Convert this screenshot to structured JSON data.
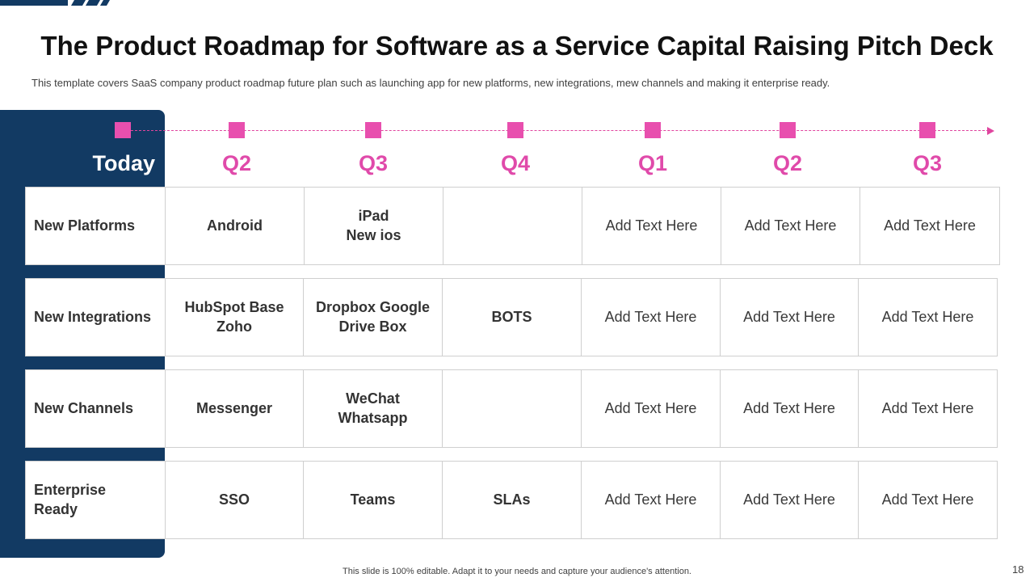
{
  "title": "The Product Roadmap for Software as a Service Capital Raising Pitch Deck",
  "subtitle": "This template covers SaaS company product roadmap future plan such as launching app for new platforms, new integrations, mew channels and making it enterprise ready.",
  "periods": [
    "Today",
    "Q2",
    "Q3",
    "Q4",
    "Q1",
    "Q2",
    "Q3"
  ],
  "rows": [
    {
      "label": "New Platforms",
      "cells": [
        "Android",
        "iPad\nNew ios",
        "",
        "Add Text Here",
        "Add Text Here",
        "Add Text Here"
      ]
    },
    {
      "label": "New Integrations",
      "cells": [
        "HubSpot Base\nZoho",
        "Dropbox Google\nDrive Box",
        "BOTS",
        "Add Text Here",
        "Add Text Here",
        "Add Text Here"
      ]
    },
    {
      "label": "New Channels",
      "cells": [
        "Messenger",
        "WeChat\nWhatsapp",
        "",
        "Add Text Here",
        "Add Text Here",
        "Add Text Here"
      ]
    },
    {
      "label": "Enterprise\nReady",
      "cells": [
        "SSO",
        "Teams",
        "SLAs",
        "Add Text Here",
        "Add Text Here",
        "Add Text Here"
      ]
    }
  ],
  "footer": "This slide is 100% editable. Adapt it to your needs and capture your audience's attention.",
  "page_number": "18",
  "colors": {
    "navy": "#123a63",
    "pink": "#e04aaa"
  }
}
